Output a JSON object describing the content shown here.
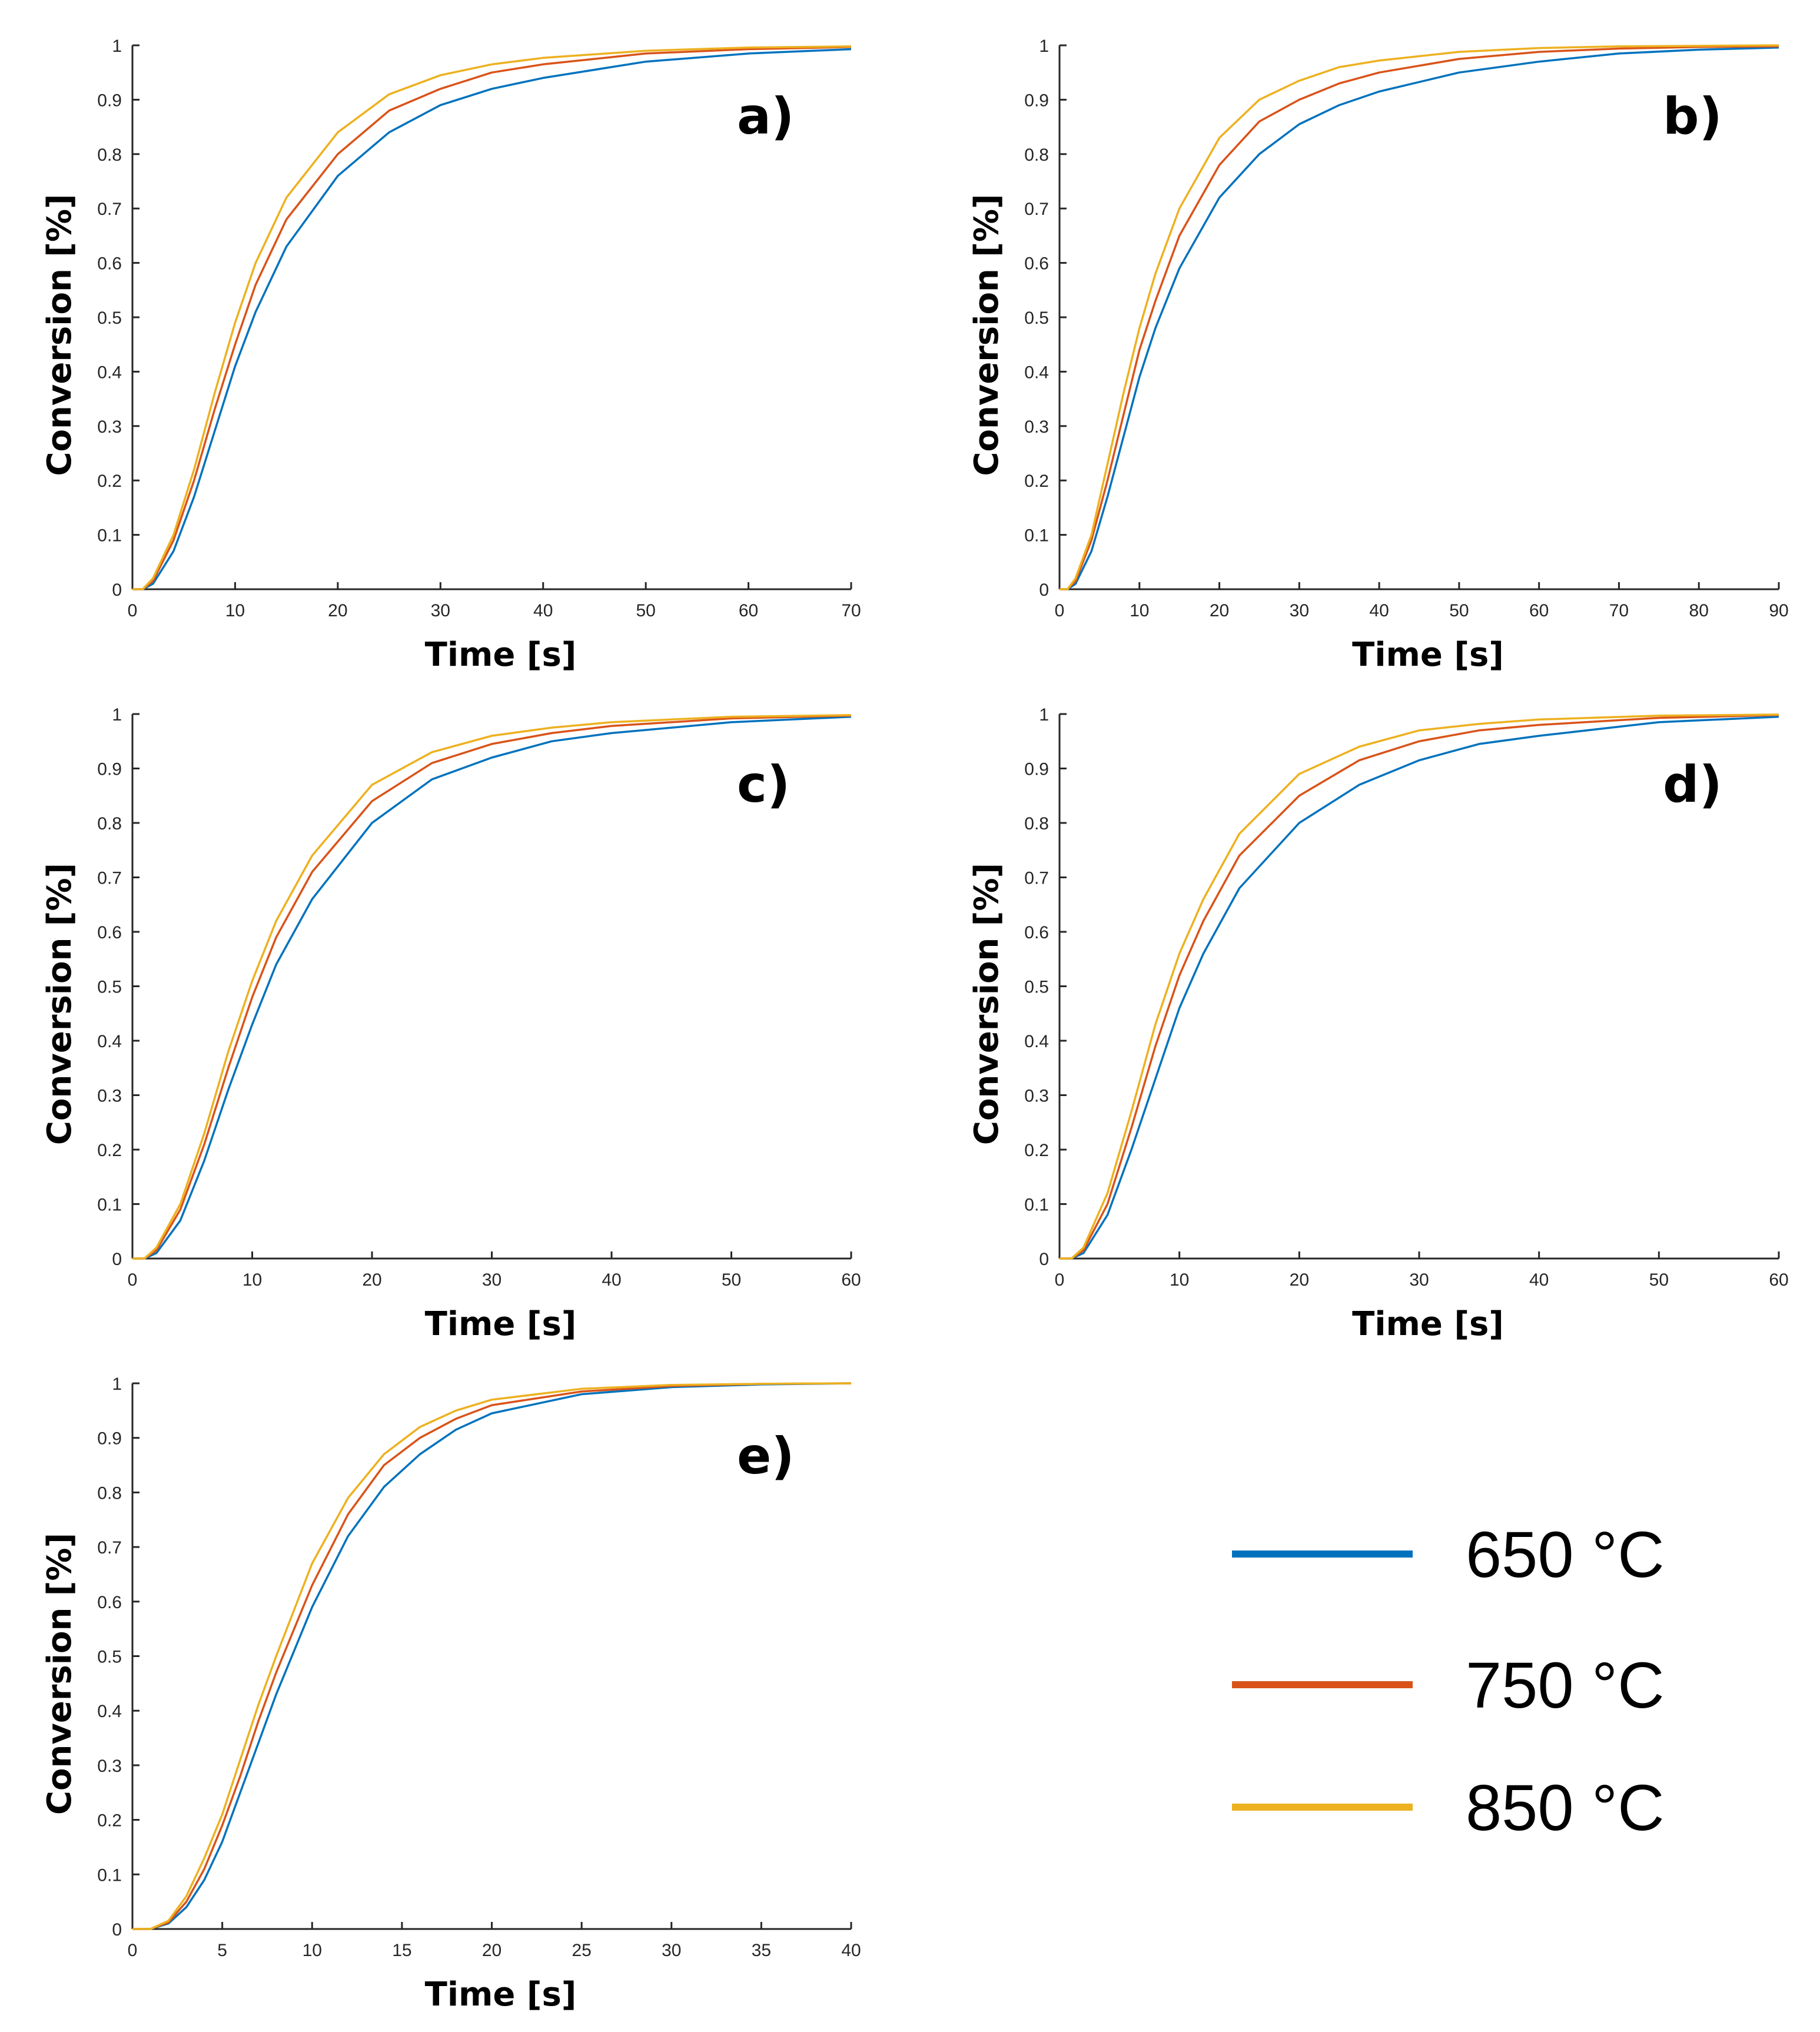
{
  "chart_data": [
    {
      "type": "line",
      "panel_label": "a)",
      "xlabel": "Time [s]",
      "ylabel": "Conversion [%]",
      "xlim": [
        0,
        70
      ],
      "ylim": [
        0,
        1
      ],
      "xticks": [
        "0",
        "10",
        "20",
        "30",
        "40",
        "50",
        "60",
        "70"
      ],
      "yticks": [
        "0",
        "0.1",
        "0.2",
        "0.3",
        "0.4",
        "0.5",
        "0.6",
        "0.7",
        "0.8",
        "0.9",
        "1"
      ],
      "x": [
        0,
        1,
        2,
        4,
        6,
        8,
        10,
        12,
        15,
        20,
        25,
        30,
        35,
        40,
        50,
        60,
        70
      ],
      "series": [
        {
          "name": "650 °C",
          "values": [
            0,
            0,
            0.01,
            0.07,
            0.17,
            0.29,
            0.41,
            0.51,
            0.63,
            0.76,
            0.84,
            0.89,
            0.92,
            0.94,
            0.97,
            0.985,
            0.993
          ]
        },
        {
          "name": "750 °C",
          "values": [
            0,
            0,
            0.015,
            0.09,
            0.2,
            0.33,
            0.45,
            0.56,
            0.68,
            0.8,
            0.88,
            0.92,
            0.95,
            0.965,
            0.985,
            0.993,
            0.997
          ]
        },
        {
          "name": "850 °C",
          "values": [
            0,
            0,
            0.02,
            0.1,
            0.22,
            0.36,
            0.49,
            0.6,
            0.72,
            0.84,
            0.91,
            0.945,
            0.965,
            0.977,
            0.99,
            0.996,
            0.998
          ]
        }
      ]
    },
    {
      "type": "line",
      "panel_label": "b)",
      "xlabel": "Time [s]",
      "ylabel": "Conversion [%]",
      "xlim": [
        0,
        90
      ],
      "ylim": [
        0,
        1
      ],
      "xticks": [
        "0",
        "10",
        "20",
        "30",
        "40",
        "50",
        "60",
        "70",
        "80",
        "90"
      ],
      "yticks": [
        "0",
        "0.1",
        "0.2",
        "0.3",
        "0.4",
        "0.5",
        "0.6",
        "0.7",
        "0.8",
        "0.9",
        "1"
      ],
      "x": [
        0,
        1,
        2,
        4,
        6,
        8,
        10,
        12,
        15,
        20,
        25,
        30,
        35,
        40,
        50,
        60,
        70,
        80,
        90
      ],
      "series": [
        {
          "name": "650 °C",
          "values": [
            0,
            0,
            0.01,
            0.07,
            0.17,
            0.28,
            0.39,
            0.48,
            0.59,
            0.72,
            0.8,
            0.855,
            0.89,
            0.915,
            0.95,
            0.97,
            0.985,
            0.992,
            0.996
          ]
        },
        {
          "name": "750 °C",
          "values": [
            0,
            0,
            0.015,
            0.09,
            0.2,
            0.32,
            0.44,
            0.53,
            0.65,
            0.78,
            0.86,
            0.9,
            0.93,
            0.95,
            0.975,
            0.988,
            0.994,
            0.997,
            0.998
          ]
        },
        {
          "name": "850 °C",
          "values": [
            0,
            0,
            0.02,
            0.1,
            0.23,
            0.36,
            0.48,
            0.58,
            0.7,
            0.83,
            0.9,
            0.935,
            0.96,
            0.972,
            0.988,
            0.995,
            0.998,
            0.999,
            1.0
          ]
        }
      ]
    },
    {
      "type": "line",
      "panel_label": "c)",
      "xlabel": "Time [s]",
      "ylabel": "Conversion [%]",
      "xlim": [
        0,
        60
      ],
      "ylim": [
        0,
        1
      ],
      "xticks": [
        "0",
        "10",
        "20",
        "30",
        "40",
        "50",
        "60"
      ],
      "yticks": [
        "0",
        "0.1",
        "0.2",
        "0.3",
        "0.4",
        "0.5",
        "0.6",
        "0.7",
        "0.8",
        "0.9",
        "1"
      ],
      "x": [
        0,
        1,
        2,
        4,
        6,
        8,
        10,
        12,
        15,
        20,
        25,
        30,
        35,
        40,
        50,
        60
      ],
      "series": [
        {
          "name": "650 °C",
          "values": [
            0,
            0,
            0.01,
            0.07,
            0.18,
            0.31,
            0.43,
            0.54,
            0.66,
            0.8,
            0.88,
            0.92,
            0.95,
            0.965,
            0.985,
            0.995
          ]
        },
        {
          "name": "750 °C",
          "values": [
            0,
            0,
            0.015,
            0.09,
            0.21,
            0.35,
            0.48,
            0.59,
            0.71,
            0.84,
            0.91,
            0.945,
            0.965,
            0.978,
            0.992,
            0.997
          ]
        },
        {
          "name": "850 °C",
          "values": [
            0,
            0,
            0.02,
            0.1,
            0.23,
            0.38,
            0.51,
            0.62,
            0.74,
            0.87,
            0.93,
            0.96,
            0.975,
            0.985,
            0.995,
            0.998
          ]
        }
      ]
    },
    {
      "type": "line",
      "panel_label": "d)",
      "xlabel": "Time [s]",
      "ylabel": "Conversion [%]",
      "xlim": [
        0,
        60
      ],
      "ylim": [
        0,
        1
      ],
      "xticks": [
        "0",
        "10",
        "20",
        "30",
        "40",
        "50",
        "60"
      ],
      "yticks": [
        "0",
        "0.1",
        "0.2",
        "0.3",
        "0.4",
        "0.5",
        "0.6",
        "0.7",
        "0.8",
        "0.9",
        "1"
      ],
      "x": [
        0,
        1,
        2,
        4,
        6,
        8,
        10,
        12,
        15,
        20,
        25,
        30,
        35,
        40,
        50,
        60
      ],
      "series": [
        {
          "name": "650 °C",
          "values": [
            0,
            0,
            0.01,
            0.08,
            0.2,
            0.33,
            0.46,
            0.56,
            0.68,
            0.8,
            0.87,
            0.915,
            0.945,
            0.96,
            0.985,
            0.995
          ]
        },
        {
          "name": "750 °C",
          "values": [
            0,
            0,
            0.015,
            0.1,
            0.24,
            0.39,
            0.52,
            0.62,
            0.74,
            0.85,
            0.915,
            0.95,
            0.97,
            0.98,
            0.993,
            0.998
          ]
        },
        {
          "name": "850 °C",
          "values": [
            0,
            0,
            0.02,
            0.12,
            0.27,
            0.43,
            0.56,
            0.66,
            0.78,
            0.89,
            0.94,
            0.97,
            0.982,
            0.99,
            0.997,
            0.999
          ]
        }
      ]
    },
    {
      "type": "line",
      "panel_label": "e)",
      "xlabel": "Time [s]",
      "ylabel": "Conversion [%]",
      "xlim": [
        0,
        40
      ],
      "ylim": [
        0,
        1
      ],
      "xticks": [
        "0",
        "5",
        "10",
        "15",
        "20",
        "25",
        "30",
        "35",
        "40"
      ],
      "yticks": [
        "0",
        "0.1",
        "0.2",
        "0.3",
        "0.4",
        "0.5",
        "0.6",
        "0.7",
        "0.8",
        "0.9",
        "1"
      ],
      "x": [
        0,
        1,
        2,
        3,
        4,
        5,
        6,
        7,
        8,
        10,
        12,
        14,
        16,
        18,
        20,
        25,
        30,
        35,
        40
      ],
      "series": [
        {
          "name": "650 °C",
          "values": [
            0,
            0,
            0.01,
            0.04,
            0.09,
            0.16,
            0.25,
            0.34,
            0.43,
            0.59,
            0.72,
            0.81,
            0.87,
            0.915,
            0.945,
            0.98,
            0.993,
            0.998,
            1.0
          ]
        },
        {
          "name": "750 °C",
          "values": [
            0,
            0,
            0.012,
            0.05,
            0.11,
            0.19,
            0.28,
            0.38,
            0.47,
            0.63,
            0.76,
            0.85,
            0.9,
            0.935,
            0.96,
            0.985,
            0.995,
            0.999,
            1.0
          ]
        },
        {
          "name": "850 °C",
          "values": [
            0,
            0,
            0.015,
            0.06,
            0.13,
            0.21,
            0.31,
            0.41,
            0.5,
            0.67,
            0.79,
            0.87,
            0.92,
            0.95,
            0.97,
            0.99,
            0.997,
            0.999,
            1.0
          ]
        }
      ]
    }
  ],
  "legend": {
    "entries": [
      {
        "label": "650 °C",
        "color": "#0072BD"
      },
      {
        "label": "750 °C",
        "color": "#D95319"
      },
      {
        "label": "850 °C",
        "color": "#EDB120"
      }
    ]
  }
}
